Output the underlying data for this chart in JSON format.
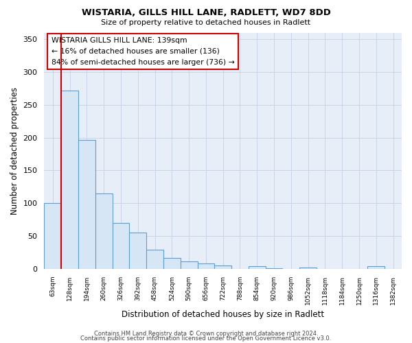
{
  "title": "WISTARIA, GILLS HILL LANE, RADLETT, WD7 8DD",
  "subtitle": "Size of property relative to detached houses in Radlett",
  "xlabel": "Distribution of detached houses by size in Radlett",
  "ylabel": "Number of detached properties",
  "bar_labels": [
    "63sqm",
    "128sqm",
    "194sqm",
    "260sqm",
    "326sqm",
    "392sqm",
    "458sqm",
    "524sqm",
    "590sqm",
    "656sqm",
    "722sqm",
    "788sqm",
    "854sqm",
    "920sqm",
    "986sqm",
    "1052sqm",
    "1118sqm",
    "1184sqm",
    "1250sqm",
    "1316sqm",
    "1382sqm"
  ],
  "bar_values": [
    100,
    272,
    196,
    115,
    70,
    55,
    29,
    17,
    11,
    8,
    5,
    0,
    4,
    1,
    0,
    2,
    0,
    0,
    0,
    4,
    0
  ],
  "bar_fill_color": "#d6e6f5",
  "bar_edge_color": "#5a9fd4",
  "vline_x_index": 1,
  "vline_color": "#cc0000",
  "ylim": [
    0,
    360
  ],
  "yticks": [
    0,
    50,
    100,
    150,
    200,
    250,
    300,
    350
  ],
  "annotation_text": "WISTARIA GILLS HILL LANE: 139sqm\n← 16% of detached houses are smaller (136)\n84% of semi-detached houses are larger (736) →",
  "footer_line1": "Contains HM Land Registry data © Crown copyright and database right 2024.",
  "footer_line2": "Contains public sector information licensed under the Open Government Licence v3.0.",
  "background_color": "#ffffff",
  "plot_bg_color": "#e8eef8"
}
